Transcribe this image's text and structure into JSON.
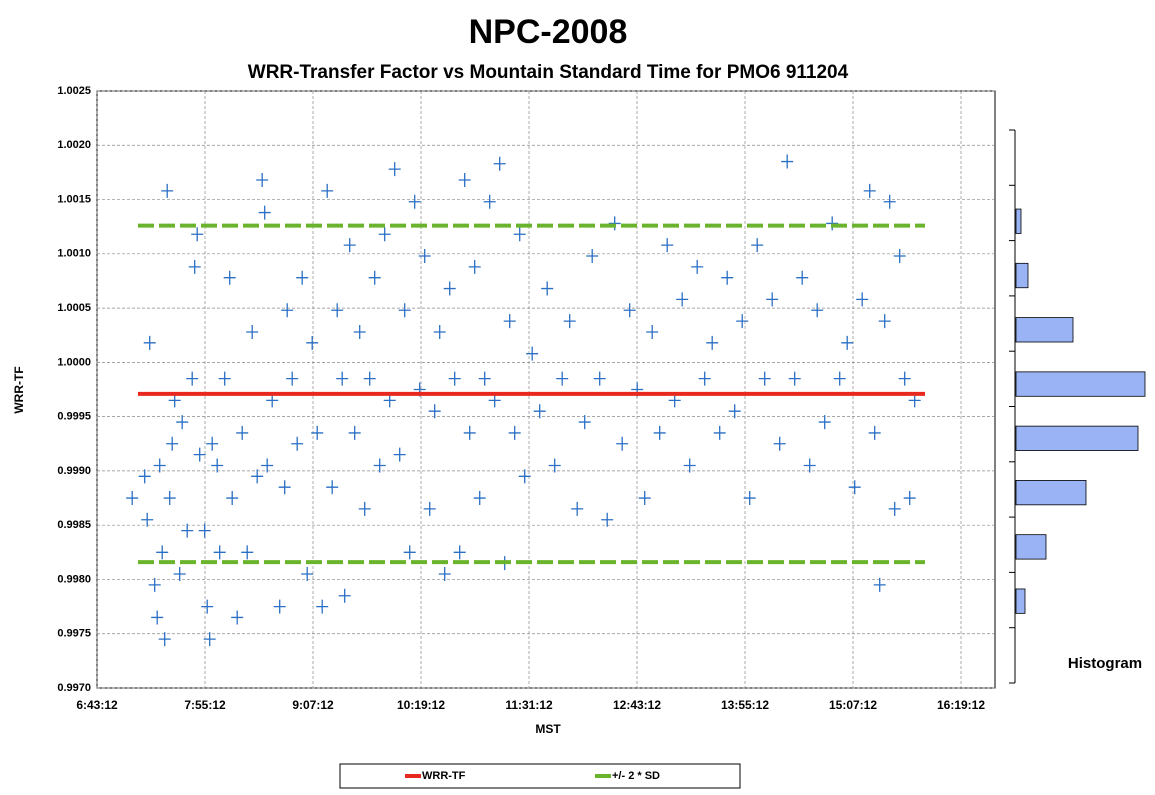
{
  "chart_data": [
    {
      "type": "scatter",
      "title": "NPC-2008",
      "subtitle": "WRR-Transfer Factor vs Mountain Standard Time for PMO6 911204",
      "x_label": "MST",
      "y_label": "WRR-TF",
      "xlim": [
        24192,
        60112
      ],
      "xticks": [
        {
          "value": 24192,
          "label": "6:43:12"
        },
        {
          "value": 28512,
          "label": "7:55:12"
        },
        {
          "value": 32832,
          "label": "9:07:12"
        },
        {
          "value": 37152,
          "label": "10:19:12"
        },
        {
          "value": 41472,
          "label": "11:31:12"
        },
        {
          "value": 45792,
          "label": "12:43:12"
        },
        {
          "value": 50112,
          "label": "13:55:12"
        },
        {
          "value": 54432,
          "label": "15:07:12"
        },
        {
          "value": 58752,
          "label": "16:19:12"
        }
      ],
      "ylim": [
        0.997,
        1.0025
      ],
      "yticks": [
        {
          "value": 0.997,
          "label": "0.9970"
        },
        0.9975,
        {
          "value": 0.998,
          "label": "0.9980"
        },
        0.9985,
        {
          "value": 0.999,
          "label": "0.9990"
        },
        0.9995,
        {
          "value": 1.0,
          "label": "1.0000"
        },
        1.0005,
        {
          "value": 1.001,
          "label": "1.0010"
        },
        1.0015,
        {
          "value": 1.002,
          "label": "1.0020"
        },
        1.0025
      ],
      "grid": true,
      "series": [
        {
          "type": "scatter",
          "color": "#2a6fc4",
          "x": [
            25600,
            26100,
            26200,
            26300,
            26500,
            26600,
            26700,
            26800,
            26900,
            27000,
            27100,
            27200,
            27300,
            27500,
            27600,
            27800,
            28000,
            28100,
            28200,
            28300,
            28500,
            28600,
            28700,
            28800,
            29000,
            29100,
            29300,
            29500,
            29600,
            29800,
            30000,
            30200,
            30400,
            30600,
            30800,
            30900,
            31000,
            31200,
            31500,
            31700,
            31800,
            32000,
            32200,
            32400,
            32600,
            32800,
            33000,
            33200,
            33400,
            33600,
            33800,
            34000,
            34100,
            34300,
            34500,
            34700,
            34900,
            35100,
            35300,
            35500,
            35700,
            35900,
            36100,
            36300,
            36500,
            36700,
            36900,
            37100,
            37300,
            37500,
            37700,
            37900,
            38100,
            38300,
            38500,
            38700,
            38900,
            39100,
            39300,
            39500,
            39700,
            39900,
            40100,
            40300,
            40500,
            40700,
            40900,
            41100,
            41300,
            41600,
            41900,
            42200,
            42500,
            42800,
            43100,
            43400,
            43700,
            44000,
            44300,
            44600,
            44900,
            45200,
            45500,
            45800,
            46100,
            46400,
            46700,
            47000,
            47300,
            47600,
            47900,
            48200,
            48500,
            48800,
            49100,
            49400,
            49700,
            50000,
            50300,
            50600,
            50900,
            51200,
            51500,
            51800,
            52100,
            52400,
            52700,
            53000,
            53300,
            53600,
            53900,
            54200,
            54500,
            54800,
            55100,
            55300,
            55500,
            55700,
            55900,
            56100,
            56300,
            56500,
            56700,
            56900
          ],
          "values": [
            0.99875,
            0.99895,
            0.99855,
            1.00018,
            0.99795,
            0.99765,
            0.99905,
            0.99825,
            0.99745,
            1.00158,
            0.99875,
            0.99925,
            0.99965,
            0.99805,
            0.99945,
            0.99845,
            0.99985,
            1.00088,
            1.00118,
            0.99915,
            0.99845,
            0.99775,
            0.99745,
            0.99925,
            0.99905,
            0.99825,
            0.99985,
            1.00078,
            0.99875,
            0.99765,
            0.99935,
            0.99825,
            1.00028,
            0.99895,
            1.00168,
            1.00138,
            0.99905,
            0.99965,
            0.99775,
            0.99885,
            1.00048,
            0.99985,
            0.99925,
            1.00078,
            0.99805,
            1.00018,
            0.99935,
            0.99775,
            1.00158,
            0.99885,
            1.00048,
            0.99985,
            0.99785,
            1.00108,
            0.99935,
            1.00028,
            0.99865,
            0.99985,
            1.00078,
            0.99905,
            1.00118,
            0.99965,
            1.00178,
            0.99915,
            1.00048,
            0.99825,
            1.00148,
            0.99975,
            1.00098,
            0.99865,
            0.99955,
            1.00028,
            0.99805,
            1.00068,
            0.99985,
            0.99825,
            1.00168,
            0.99935,
            1.00088,
            0.99875,
            0.99985,
            1.00148,
            0.99965,
            1.00183,
            0.99815,
            1.00038,
            0.99935,
            1.00118,
            0.99895,
            1.00008,
            0.99955,
            1.00068,
            0.99905,
            0.99985,
            1.00038,
            0.99865,
            0.99945,
            1.00098,
            0.99985,
            0.99855,
            1.00128,
            0.99925,
            1.00048,
            0.99975,
            0.99875,
            1.00028,
            0.99935,
            1.00108,
            0.99965,
            1.00058,
            0.99905,
            1.00088,
            0.99985,
            1.00018,
            0.99935,
            1.00078,
            0.99955,
            1.00038,
            0.99875,
            1.00108,
            0.99985,
            1.00058,
            0.99925,
            1.00185,
            0.99985,
            1.00078,
            0.99905,
            1.00048,
            0.99945,
            1.00128,
            0.99985,
            1.00018,
            0.99885,
            1.00058,
            1.00158,
            0.99935,
            0.99795,
            1.00038,
            1.00148,
            0.99865,
            1.00098,
            0.99985,
            0.99875,
            0.99965
          ]
        },
        {
          "type": "line",
          "name": "WRR-TF",
          "color": "#e8281e",
          "dashed": false,
          "x": [
            25832,
            57312
          ],
          "values": [
            0.99971,
            0.99971
          ]
        },
        {
          "type": "line",
          "name": "+/- 2 * SD",
          "color": "#6ab42d",
          "dashed": true,
          "x": [
            25832,
            57312,
            null,
            25832,
            57312
          ],
          "values": [
            1.00126,
            1.00126,
            null,
            0.99816,
            0.99816
          ]
        }
      ]
    },
    {
      "type": "histogram",
      "title": "Histogram",
      "orientation": "horizontal",
      "color": "#99b3f5",
      "bins": [
        0.99755,
        0.99805,
        0.99855,
        0.99905,
        0.99955,
        1.00005,
        1.00055,
        1.00105,
        1.00155
      ],
      "counts": [
        9,
        30,
        70,
        122,
        129,
        57,
        12,
        5
      ]
    }
  ]
}
